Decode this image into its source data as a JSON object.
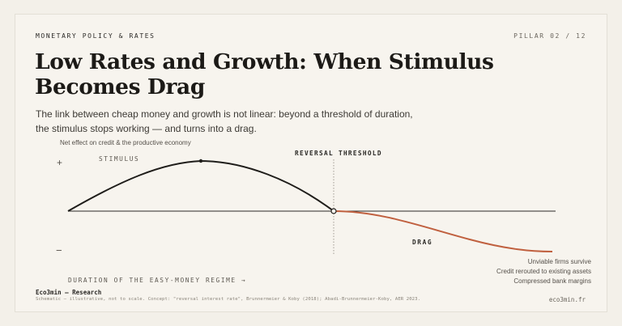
{
  "header": {
    "kicker": "MONETARY POLICY & RATES",
    "pillar": "PILLAR 02 / 12"
  },
  "title": "Low Rates and Growth: When Stimulus Becomes Drag",
  "lede": "The link between cheap money and growth is not linear: beyond a threshold of duration, the stimulus stops working — and turns into a drag.",
  "diagram": {
    "y_axis_label": "Net effect on credit & the productive economy",
    "plus_sign": "+",
    "minus_sign": "−",
    "stimulus_label": "STIMULUS",
    "threshold_label": "REVERSAL THRESHOLD",
    "drag_label": "DRAG",
    "x_axis_label": "DURATION OF THE EASY-MONEY REGIME →",
    "consequences": [
      "Unviable firms survive",
      "Credit rerouted to existing assets",
      "Compressed bank margins"
    ],
    "colors": {
      "stimulus_curve": "#1f1d1a",
      "drag_curve": "#c0603f",
      "baseline": "#2b2926",
      "threshold_line": "#8a847a"
    }
  },
  "footer": {
    "brand": "Eco3min — Research",
    "note": "Schematic — illustrative, not to scale.  Concept: \"reversal interest rate\", Brunnermeier & Koby (2018); Abadi-Brunnermeier-Koby, AER 2023.",
    "url": "eco3min.fr"
  }
}
